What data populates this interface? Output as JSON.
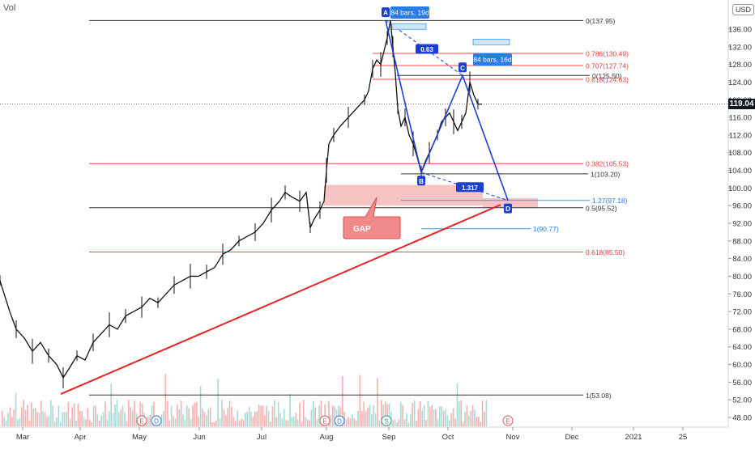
{
  "header": {
    "volume_label": "Vol",
    "currency": "USD",
    "current_price": "119.04"
  },
  "chart_data": {
    "type": "candlestick",
    "y_range": [
      46,
      140
    ],
    "y_ticks": [
      "48.00",
      "52.00",
      "56.00",
      "60.00",
      "64.00",
      "68.00",
      "72.00",
      "76.00",
      "80.00",
      "84.00",
      "88.00",
      "92.00",
      "96.00",
      "100.00",
      "104.00",
      "108.00",
      "112.00",
      "116.00",
      "120.00",
      "124.00",
      "128.00",
      "132.00",
      "136.00"
    ],
    "x_ticks": [
      "Mar",
      "Apr",
      "May",
      "Jun",
      "Jul",
      "Aug",
      "Sep",
      "Oct",
      "Nov",
      "Dec",
      "2021",
      "25"
    ],
    "price_path": [
      [
        0,
        79
      ],
      [
        12,
        72
      ],
      [
        20,
        68
      ],
      [
        30,
        66
      ],
      [
        40,
        63
      ],
      [
        50,
        65
      ],
      [
        60,
        62
      ],
      [
        70,
        60
      ],
      [
        78,
        57
      ],
      [
        85,
        59
      ],
      [
        95,
        62
      ],
      [
        105,
        61
      ],
      [
        115,
        65
      ],
      [
        125,
        67
      ],
      [
        135,
        69
      ],
      [
        145,
        68
      ],
      [
        155,
        71
      ],
      [
        165,
        72
      ],
      [
        175,
        73
      ],
      [
        185,
        75
      ],
      [
        195,
        74
      ],
      [
        205,
        76
      ],
      [
        215,
        78
      ],
      [
        225,
        79
      ],
      [
        235,
        80
      ],
      [
        245,
        80
      ],
      [
        255,
        81
      ],
      [
        265,
        82
      ],
      [
        275,
        85
      ],
      [
        285,
        86
      ],
      [
        295,
        88
      ],
      [
        305,
        89
      ],
      [
        315,
        90
      ],
      [
        325,
        92
      ],
      [
        335,
        95
      ],
      [
        345,
        97
      ],
      [
        352,
        99
      ],
      [
        360,
        98
      ],
      [
        370,
        97
      ],
      [
        378,
        99
      ],
      [
        383,
        91
      ],
      [
        388,
        93
      ],
      [
        395,
        95
      ],
      [
        400,
        97
      ],
      [
        403,
        104
      ],
      [
        406,
        110
      ],
      [
        412,
        112
      ],
      [
        420,
        114
      ],
      [
        430,
        116
      ],
      [
        440,
        118
      ],
      [
        450,
        120
      ],
      [
        455,
        122
      ],
      [
        460,
        127
      ],
      [
        465,
        129
      ],
      [
        470,
        128
      ],
      [
        474,
        131
      ],
      [
        478,
        134
      ],
      [
        482,
        138
      ],
      [
        485,
        132
      ],
      [
        488,
        126
      ],
      [
        491,
        118
      ],
      [
        495,
        114
      ],
      [
        500,
        116
      ],
      [
        505,
        112
      ],
      [
        510,
        110
      ],
      [
        515,
        107
      ],
      [
        520,
        103.5
      ],
      [
        525,
        106
      ],
      [
        530,
        108
      ],
      [
        535,
        110
      ],
      [
        540,
        112
      ],
      [
        545,
        115
      ],
      [
        550,
        116
      ],
      [
        555,
        117
      ],
      [
        560,
        115
      ],
      [
        565,
        113
      ],
      [
        570,
        115
      ],
      [
        575,
        117
      ],
      [
        580,
        124
      ],
      [
        585,
        121
      ],
      [
        590,
        119
      ],
      [
        595,
        119
      ]
    ],
    "fib_levels_major": [
      {
        "label": "0(137.95)",
        "value": 137.95
      },
      {
        "label": "0(125.50)",
        "value": 125.5
      },
      {
        "label": "1(103.20)",
        "value": 103.2
      },
      {
        "label": "0.5(95.52)",
        "value": 95.52
      },
      {
        "label": "1(53.08)",
        "value": 53.08
      }
    ],
    "fib_levels_red": [
      {
        "label": "0.786(130.49)",
        "value": 130.49
      },
      {
        "label": "0.707(127.74)",
        "value": 127.74
      },
      {
        "label": "0.618(124.63)",
        "value": 124.63
      },
      {
        "label": "0.382(105.53)",
        "value": 105.53
      },
      {
        "label": "0.618(85.50)",
        "value": 85.5
      }
    ],
    "fib_levels_blue": [
      {
        "label": "1.27(97.18)",
        "value": 97.18
      },
      {
        "label": "1(90.77)",
        "value": 90.77
      }
    ],
    "pattern_points": [
      {
        "label": "A",
        "value": 138
      },
      {
        "label": "B",
        "value": 103.5
      },
      {
        "label": "C",
        "value": 125.5
      },
      {
        "label": "D",
        "value": 97.2
      }
    ],
    "ratio_labels": [
      "0.63",
      "1.317"
    ],
    "bar_counts": [
      "84 bars, 19d",
      "84 bars, 16d"
    ],
    "annotation": "GAP",
    "event_markers": [
      "E",
      "D",
      "E",
      "D",
      "S",
      "E"
    ]
  }
}
